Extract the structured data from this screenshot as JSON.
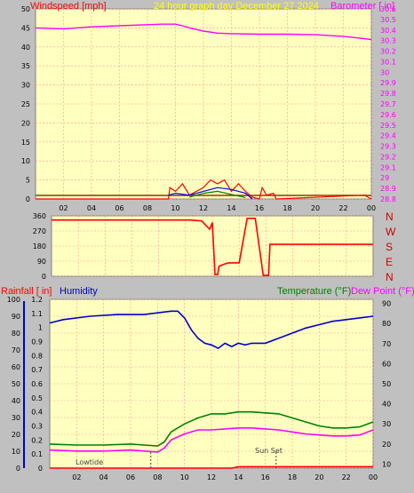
{
  "colors": {
    "background": "#c0c0c0",
    "plot_bg": "#ffffc0",
    "grid": "#ff9999",
    "wind": "#ff0000",
    "gust": "#0000ff",
    "wind_green": "#008000",
    "barometer": "#ff00ff",
    "title": "#ffff00",
    "humidity": "#0000cc",
    "temperature": "#008000",
    "dewpoint": "#ff00ff",
    "rainfall": "#ff0000"
  },
  "header": {
    "windspeed_label": "Windspeed [mph]",
    "title": "24 hour graph day   December 27 2024",
    "barometer_label": "Barometer [ in]"
  },
  "bottom_header": {
    "rainfall_label": "Rainfall [ in]",
    "humidity_label": "Humidity",
    "temperature_label": "Temperature (°F)",
    "dewpoint_label": "Dew Point (°F)"
  },
  "direction_labels": [
    "N",
    "W",
    "S",
    "E",
    "N"
  ],
  "annotations": {
    "lowtide": "Lowtide",
    "sunset": "Sun Set"
  },
  "chart_data": [
    {
      "type": "line",
      "name": "wind-barometer",
      "x_ticks": [
        "02",
        "04",
        "06",
        "08",
        "10",
        "12",
        "14",
        "16",
        "18",
        "20",
        "22",
        "00"
      ],
      "left_axis": {
        "label": "Windspeed [mph]",
        "ticks": [
          0,
          5,
          10,
          15,
          20,
          25,
          30,
          35,
          40,
          45,
          50
        ],
        "ylim": [
          0,
          50
        ]
      },
      "right_axis": {
        "label": "Barometer [ in]",
        "ticks": [
          "28.8",
          "28.9",
          "29",
          "29.1",
          "29.2",
          "29.3",
          "29.4",
          "29.5",
          "29.6",
          "29.7",
          "29.8",
          "29.9",
          "30",
          "30.1",
          "30.2",
          "30.3",
          "30.4",
          "30.5",
          "30.6"
        ],
        "ylim": [
          28.8,
          30.6
        ]
      },
      "xlim": [
        0,
        24
      ],
      "grid": true,
      "series": [
        {
          "name": "Barometer",
          "x": [
            0,
            2,
            4,
            6,
            8,
            9,
            10,
            10.5,
            11,
            12,
            13,
            14,
            16,
            18,
            20,
            22,
            23,
            24
          ],
          "values": [
            30.42,
            30.41,
            30.43,
            30.44,
            30.45,
            30.455,
            30.455,
            30.44,
            30.42,
            30.39,
            30.37,
            30.365,
            30.36,
            30.36,
            30.355,
            30.34,
            30.325,
            30.31
          ]
        },
        {
          "name": "Windspeed",
          "x": [
            0,
            9.5,
            9.6,
            10,
            10.5,
            11,
            11.5,
            12,
            12.5,
            13,
            13.5,
            14,
            14.5,
            15,
            15.5,
            16,
            16.2,
            16.5,
            17,
            17.2,
            23.5,
            24
          ],
          "values": [
            0,
            0,
            3,
            2,
            4,
            1,
            2,
            3,
            5,
            4,
            5,
            2,
            4,
            2,
            0.5,
            0,
            3,
            1,
            1.5,
            0,
            1,
            0
          ]
        },
        {
          "name": "Gust",
          "x": [
            9.5,
            10,
            11,
            12,
            13,
            14,
            15,
            15.5
          ],
          "values": [
            1,
            1.5,
            1,
            2,
            3,
            2.5,
            1.5,
            0
          ]
        },
        {
          "name": "Wind-green",
          "x": [
            11,
            12,
            13,
            14,
            15
          ],
          "values": [
            0.5,
            1.5,
            2,
            1.2,
            0.4
          ]
        }
      ]
    },
    {
      "type": "line",
      "name": "wind-direction",
      "x_ticks": [],
      "left_axis": {
        "ticks": [
          0,
          90,
          180,
          270,
          360
        ],
        "ylim": [
          0,
          360
        ]
      },
      "right_axis": {
        "ticks": [
          "N",
          "W",
          "S",
          "E",
          "N"
        ]
      },
      "xlim": [
        0,
        24
      ],
      "grid": true,
      "series": [
        {
          "name": "Direction",
          "x": [
            0,
            8,
            10.3,
            11.2,
            11.8,
            12.0,
            12.2,
            12.4,
            12.5,
            13.0,
            13.2,
            13.6,
            14.0,
            14.6,
            15.2,
            15.8,
            16.0,
            16.2,
            16.3,
            24
          ],
          "values": [
            335,
            335,
            335,
            330,
            280,
            320,
            10,
            10,
            60,
            75,
            80,
            80,
            80,
            345,
            345,
            5,
            5,
            5,
            190,
            190
          ]
        }
      ]
    },
    {
      "type": "line",
      "name": "temperature-humidity",
      "x_ticks": [
        "02",
        "04",
        "06",
        "08",
        "10",
        "12",
        "14",
        "16",
        "18",
        "20",
        "22",
        "00"
      ],
      "left_axis": {
        "label": "Humidity",
        "ticks": [
          0,
          10,
          20,
          30,
          40,
          50,
          60,
          70,
          80,
          90,
          100
        ],
        "ylim": [
          0,
          100
        ]
      },
      "left_axis_2": {
        "label": "Rainfall [ in]",
        "ticks": [
          "0",
          "0.1",
          "0.2",
          "0.3",
          "0.4",
          "0.5",
          "0.6",
          "0.7",
          "0.8",
          "0.9",
          "1",
          "1.1",
          "1.2"
        ],
        "ylim": [
          0,
          1.2
        ]
      },
      "right_axis": {
        "label": "Temperature (°F)",
        "ticks": [
          10,
          20,
          30,
          40,
          50,
          60,
          70,
          80,
          90
        ],
        "ylim": [
          8,
          92
        ]
      },
      "xlim": [
        0,
        24
      ],
      "grid": true,
      "series": [
        {
          "name": "Humidity",
          "x": [
            0,
            1,
            3,
            5,
            7,
            8,
            9,
            9.5,
            10,
            10.5,
            11,
            11.5,
            12,
            12.5,
            13,
            13.5,
            14,
            14.5,
            15,
            16,
            17,
            18,
            19,
            20,
            21,
            22,
            23,
            24
          ],
          "values": [
            86,
            88,
            90,
            91,
            91,
            92,
            93,
            93,
            89,
            82,
            77,
            74,
            73,
            71,
            74,
            72,
            74,
            73,
            74,
            74,
            77,
            80,
            83,
            85,
            87,
            88,
            89,
            90
          ]
        },
        {
          "name": "Temperature",
          "x": [
            0,
            2,
            4,
            6,
            7,
            8,
            8.5,
            9,
            10,
            11,
            12,
            13,
            14,
            15,
            16,
            17,
            18,
            19,
            20,
            21,
            22,
            23,
            24
          ],
          "values": [
            20,
            19.5,
            19.5,
            20,
            19.5,
            19,
            21,
            26,
            30,
            33,
            35,
            35,
            36,
            36,
            35.5,
            35,
            33,
            31,
            29,
            28,
            28,
            28.5,
            31
          ]
        },
        {
          "name": "Dew Point",
          "x": [
            0,
            2,
            4,
            6,
            7,
            8,
            8.5,
            9,
            10,
            11,
            12,
            13,
            14,
            15,
            16,
            17,
            18,
            19,
            20,
            21,
            22,
            23,
            24
          ],
          "values": [
            17,
            16.5,
            16.5,
            17,
            16.5,
            16,
            18,
            22,
            25,
            27,
            27,
            27.5,
            28,
            28,
            27.5,
            27,
            26,
            25,
            24.5,
            24,
            24,
            24.5,
            27
          ]
        },
        {
          "name": "Rainfall",
          "x": [
            0,
            13.5,
            14,
            24
          ],
          "values": [
            0,
            0,
            0.01,
            0.01
          ]
        }
      ],
      "markers": [
        {
          "label": "Lowtide",
          "x": 7.5
        },
        {
          "label": "Sun Set",
          "x": 16.8
        }
      ]
    }
  ]
}
